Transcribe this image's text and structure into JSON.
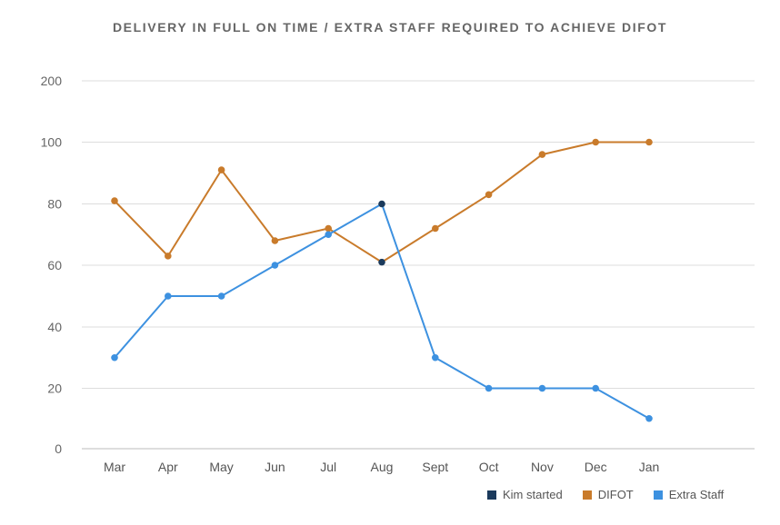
{
  "chart_data": {
    "type": "line",
    "title": "DELIVERY IN FULL ON TIME / EXTRA STAFF REQUIRED TO ACHIEVE DIFOT",
    "categories": [
      "Mar",
      "Apr",
      "May",
      "Jun",
      "Jul",
      "Aug",
      "Sept",
      "Oct",
      "Nov",
      "Dec",
      "Jan"
    ],
    "y_ticks": [
      "0",
      "20",
      "40",
      "60",
      "80",
      "100",
      "200"
    ],
    "series": [
      {
        "name": "DIFOT",
        "color": "#C97B2B",
        "values": [
          81,
          63,
          91,
          68,
          72,
          61,
          72,
          83,
          96,
          100,
          100
        ]
      },
      {
        "name": "Extra Staff",
        "color": "#3D91E0",
        "values": [
          30,
          50,
          50,
          60,
          70,
          80,
          30,
          20,
          20,
          20,
          10
        ]
      }
    ],
    "highlight": {
      "name": "Kim started",
      "color": "#1B3A5C",
      "category": "Aug"
    },
    "legend": [
      {
        "name": "Kim started",
        "color": "#1B3A5C"
      },
      {
        "name": "DIFOT",
        "color": "#C97B2B"
      },
      {
        "name": "Extra Staff",
        "color": "#3D91E0"
      }
    ],
    "legend_position": "bottom-right",
    "grid": true
  }
}
